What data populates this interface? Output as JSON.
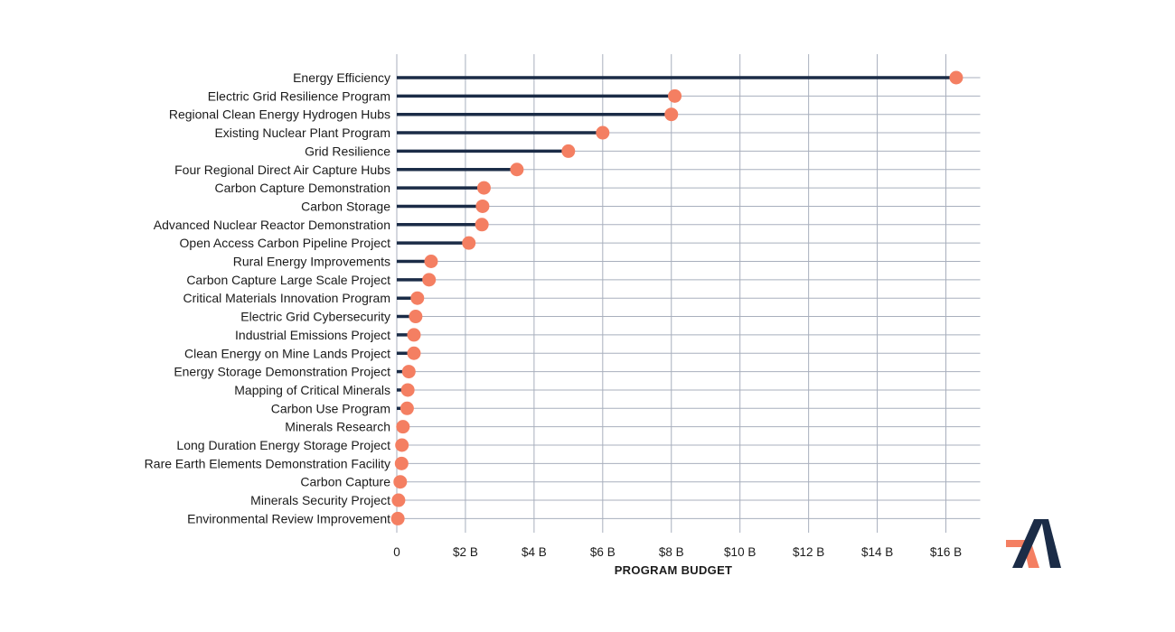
{
  "chart_data": {
    "type": "lollipop",
    "xlabel": "PROGRAM BUDGET",
    "ylabel": "",
    "xlim": [
      0,
      17
    ],
    "x_ticks": [
      0,
      2,
      4,
      6,
      8,
      10,
      12,
      14,
      16
    ],
    "x_tick_labels": [
      "0",
      "$2 B",
      "$4 B",
      "$6 B",
      "$8 B",
      "$10 B",
      "$12 B",
      "$14 B",
      "$16 B"
    ],
    "grid": true,
    "categories": [
      "Energy Efficiency",
      "Electric Grid Resilience Program",
      "Regional Clean Energy Hydrogen Hubs",
      "Existing Nuclear Plant Program",
      "Grid Resilience",
      "Four Regional Direct Air Capture Hubs",
      "Carbon Capture Demonstration",
      "Carbon Storage",
      "Advanced Nuclear Reactor Demonstration",
      "Open Access Carbon Pipeline Project",
      "Rural Energy Improvements",
      "Carbon Capture Large Scale Project",
      "Critical Materials Innovation Program",
      "Electric Grid Cybersecurity",
      "Industrial Emissions Project",
      "Clean Energy on Mine Lands Project",
      "Energy Storage Demonstration Project",
      "Mapping of Critical Minerals",
      "Carbon Use Program",
      "Minerals Research",
      "Long Duration Energy Storage Project",
      "Rare Earth Elements Demonstration Facility",
      "Carbon Capture",
      "Minerals Security Project",
      "Environmental Review Improvement"
    ],
    "values": [
      16.3,
      8.1,
      8.0,
      6.0,
      5.0,
      3.5,
      2.54,
      2.5,
      2.48,
      2.1,
      1.0,
      0.94,
      0.6,
      0.55,
      0.5,
      0.5,
      0.35,
      0.32,
      0.3,
      0.18,
      0.15,
      0.14,
      0.1,
      0.05,
      0.03
    ],
    "colors": {
      "stem": "#1b2c47",
      "dot": "#f47f62",
      "grid": "#a8afbd"
    }
  },
  "logo": {
    "name": "brand-logo",
    "colors": [
      "#f47f62",
      "#1b2c47"
    ]
  }
}
